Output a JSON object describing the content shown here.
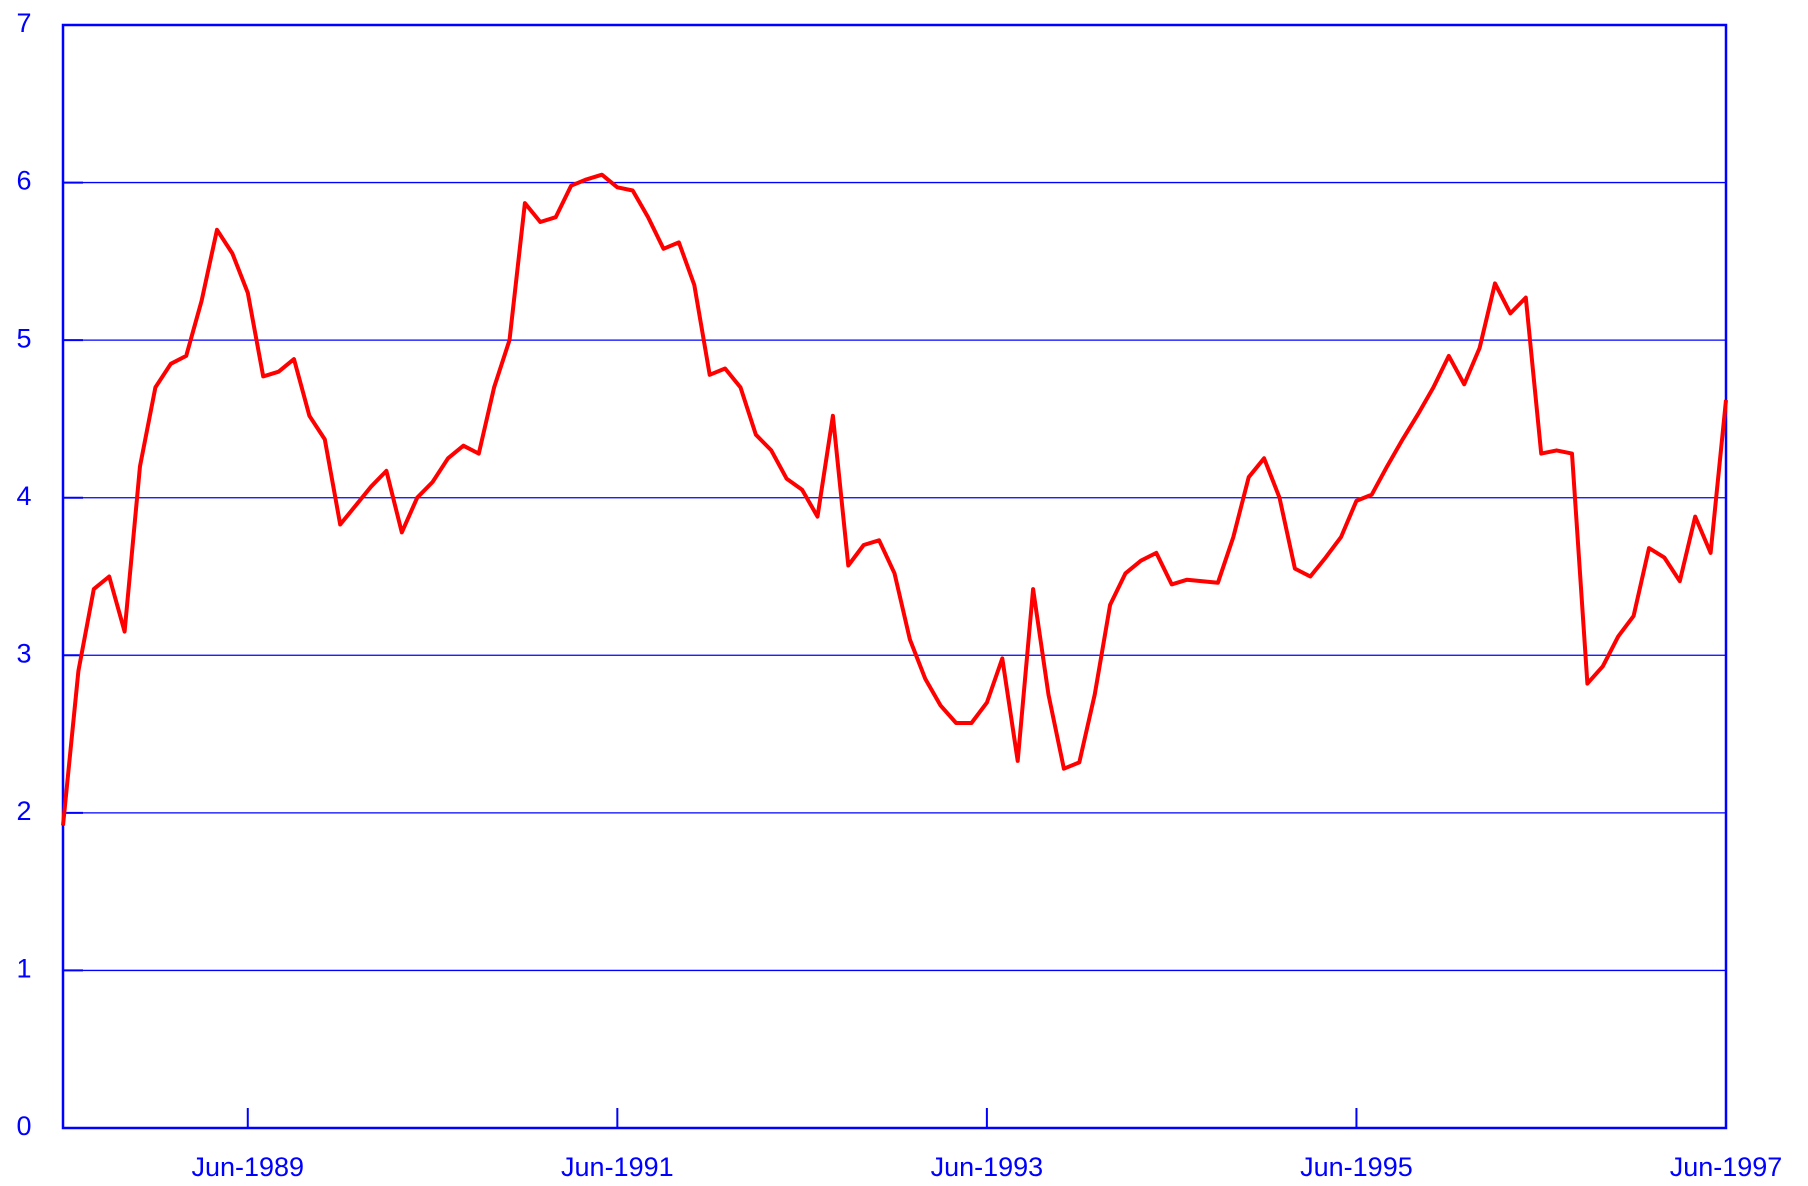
{
  "chart_data": {
    "type": "line",
    "categories": [
      null,
      null,
      null,
      null,
      null,
      null,
      null,
      null,
      null,
      null,
      null,
      null,
      "Jun-1989",
      null,
      null,
      null,
      null,
      null,
      null,
      null,
      null,
      null,
      null,
      null,
      null,
      null,
      null,
      null,
      null,
      null,
      null,
      null,
      null,
      null,
      null,
      null,
      "Jun-1991",
      null,
      null,
      null,
      null,
      null,
      null,
      null,
      null,
      null,
      null,
      null,
      null,
      null,
      null,
      null,
      null,
      null,
      null,
      null,
      null,
      null,
      null,
      null,
      "Jun-1993",
      null,
      null,
      null,
      null,
      null,
      null,
      null,
      null,
      null,
      null,
      null,
      null,
      null,
      null,
      null,
      null,
      null,
      null,
      null,
      null,
      null,
      null,
      null,
      "Jun-1995",
      null,
      null,
      null,
      null,
      null,
      null,
      null,
      null,
      null,
      null,
      null,
      null,
      null,
      null,
      null,
      null,
      null,
      null,
      null,
      null,
      null,
      null,
      null,
      "Jun-1997"
    ],
    "values": [
      1.92,
      2.9,
      3.42,
      3.5,
      3.15,
      4.2,
      4.7,
      4.85,
      4.9,
      5.25,
      5.7,
      5.55,
      5.3,
      4.77,
      4.8,
      4.88,
      4.52,
      4.37,
      3.83,
      3.95,
      4.07,
      4.17,
      3.78,
      4.0,
      4.1,
      4.25,
      4.33,
      4.28,
      4.7,
      5.0,
      5.87,
      5.75,
      5.78,
      5.98,
      6.02,
      6.05,
      5.97,
      5.95,
      5.78,
      5.58,
      5.62,
      5.35,
      4.78,
      4.82,
      4.7,
      4.4,
      4.3,
      4.12,
      4.05,
      3.88,
      4.52,
      3.57,
      3.7,
      3.73,
      3.52,
      3.1,
      2.85,
      2.68,
      2.57,
      2.57,
      2.7,
      2.98,
      2.33,
      3.42,
      2.75,
      2.28,
      2.32,
      2.75,
      3.32,
      3.52,
      3.6,
      3.65,
      3.45,
      3.48,
      3.47,
      3.46,
      3.75,
      4.13,
      4.25,
      4.0,
      3.55,
      3.5,
      3.62,
      3.75,
      3.98,
      4.02,
      4.2,
      4.37,
      4.53,
      4.7,
      4.9,
      4.72,
      4.95,
      5.36,
      5.17,
      5.27,
      4.28,
      4.3,
      4.28,
      2.82,
      2.93,
      3.12,
      3.25,
      3.68,
      3.62,
      3.47,
      3.88,
      3.65,
      4.62
    ],
    "color": "#ff0000",
    "axis_color": "#0000ff",
    "ylim": [
      0,
      7
    ],
    "yticks": [
      0,
      1,
      2,
      3,
      4,
      5,
      6,
      7
    ],
    "grid": true
  }
}
